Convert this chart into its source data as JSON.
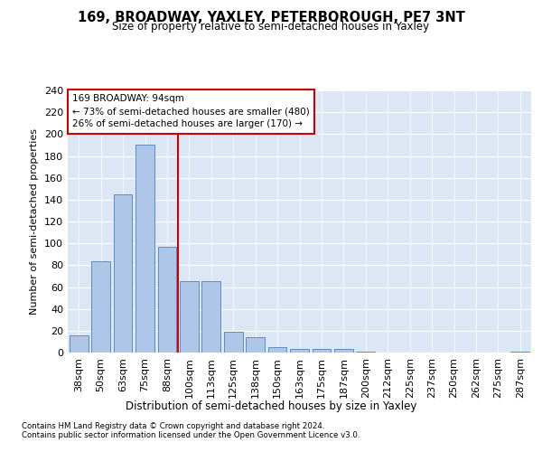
{
  "title": "169, BROADWAY, YAXLEY, PETERBOROUGH, PE7 3NT",
  "subtitle": "Size of property relative to semi-detached houses in Yaxley",
  "xlabel": "Distribution of semi-detached houses by size in Yaxley",
  "ylabel": "Number of semi-detached properties",
  "categories": [
    "38sqm",
    "50sqm",
    "63sqm",
    "75sqm",
    "88sqm",
    "100sqm",
    "113sqm",
    "125sqm",
    "138sqm",
    "150sqm",
    "163sqm",
    "175sqm",
    "187sqm",
    "200sqm",
    "212sqm",
    "225sqm",
    "237sqm",
    "250sqm",
    "262sqm",
    "275sqm",
    "287sqm"
  ],
  "values": [
    16,
    84,
    145,
    190,
    97,
    65,
    65,
    19,
    14,
    5,
    3,
    3,
    3,
    1,
    0,
    0,
    0,
    0,
    0,
    0,
    1
  ],
  "bar_color": "#aec6e8",
  "bar_edge_color": "#5b8ec4",
  "subject_sqm": 94,
  "pct_smaller": 73,
  "n_smaller": 480,
  "pct_larger": 26,
  "n_larger": 170,
  "vline_color": "#cc0000",
  "annotation_box_edge": "#cc0000",
  "ylim": [
    0,
    240
  ],
  "yticks": [
    0,
    20,
    40,
    60,
    80,
    100,
    120,
    140,
    160,
    180,
    200,
    220,
    240
  ],
  "footer_line1": "Contains HM Land Registry data © Crown copyright and database right 2024.",
  "footer_line2": "Contains public sector information licensed under the Open Government Licence v3.0.",
  "plot_bg_color": "#dce6f5"
}
